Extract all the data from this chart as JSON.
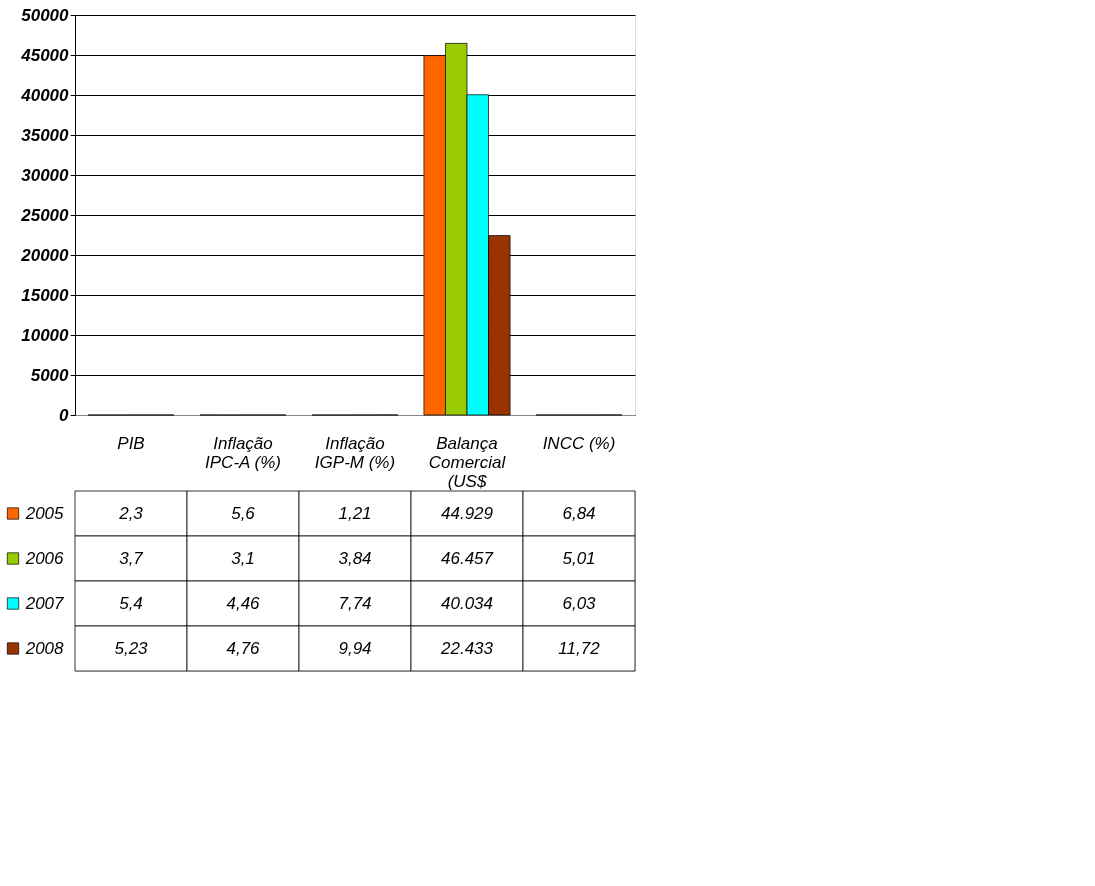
{
  "chart_data": {
    "type": "bar",
    "categories": [
      "PIB",
      "Inflação IPC-A (%)",
      "Inflação IGP-M (%)",
      "Balança Comercial (US$",
      "INCC (%)"
    ],
    "series": [
      {
        "name": "2005",
        "color": "#ff6600",
        "values": [
          2.3,
          5.6,
          1.21,
          44929,
          6.84
        ],
        "value_labels": [
          "2,3",
          "5,6",
          "1,21",
          "44.929",
          "6,84"
        ]
      },
      {
        "name": "2006",
        "color": "#99cc00",
        "values": [
          3.7,
          3.1,
          3.84,
          46457,
          5.01
        ],
        "value_labels": [
          "3,7",
          "3,1",
          "3,84",
          "46.457",
          "5,01"
        ]
      },
      {
        "name": "2007",
        "color": "#00ffff",
        "values": [
          5.4,
          4.46,
          7.74,
          40034,
          6.03
        ],
        "value_labels": [
          "5,4",
          "4,46",
          "7,74",
          "40.034",
          "6,03"
        ]
      },
      {
        "name": "2008",
        "color": "#993300",
        "values": [
          5.23,
          4.76,
          9.94,
          22433,
          11.72
        ],
        "value_labels": [
          "5,23",
          "4,76",
          "9,94",
          "22.433",
          "11,72"
        ]
      }
    ],
    "ylim": [
      0,
      50000
    ],
    "yticks": [
      0,
      5000,
      10000,
      15000,
      20000,
      25000,
      30000,
      35000,
      40000,
      45000,
      50000
    ],
    "grid": "y",
    "legend": "bottom left"
  }
}
